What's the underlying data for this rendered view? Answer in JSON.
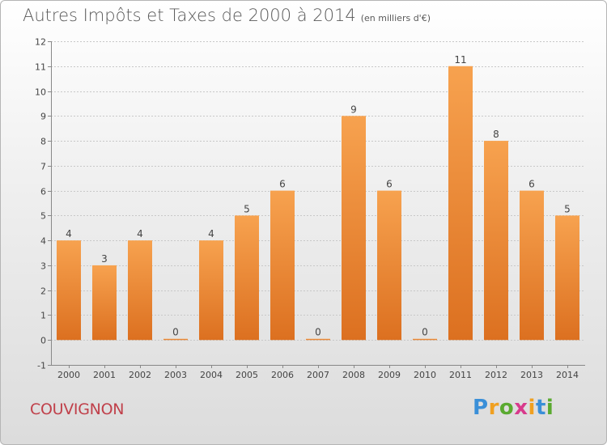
{
  "title": {
    "main": "Autres Impôts et Taxes de 2000 à 2014",
    "unit": "(en milliers d'€)"
  },
  "commune": "COUVIGNON",
  "brand": {
    "letters": [
      "P",
      "r",
      "o",
      "x",
      "i",
      "t",
      "i"
    ],
    "colors": [
      "#3a8fd8",
      "#f0a020",
      "#5aaa30",
      "#d83a8c",
      "#f0a020",
      "#3a8fd8",
      "#5aaa30"
    ]
  },
  "colors": {
    "bar_top": "#f7a24f",
    "bar_bottom": "#dc7020",
    "axis": "#888888",
    "grid": "#c8c8c8",
    "label": "#444444"
  },
  "chart_data": {
    "type": "bar",
    "title": "Autres Impôts et Taxes de 2000 à 2014",
    "unit": "(en milliers d'€)",
    "categories": [
      "2000",
      "2001",
      "2002",
      "2003",
      "2004",
      "2005",
      "2006",
      "2007",
      "2008",
      "2009",
      "2010",
      "2011",
      "2012",
      "2013",
      "2014"
    ],
    "values": [
      4,
      3,
      4,
      0,
      4,
      5,
      6,
      0,
      9,
      6,
      0,
      11,
      8,
      6,
      5
    ],
    "value_labels": [
      "4",
      "3",
      "4",
      "0",
      "4",
      "5",
      "6",
      "0",
      "9",
      "6",
      "0",
      "11",
      "8",
      "6",
      "5"
    ],
    "ylim": [
      -1,
      12
    ],
    "yticks": [
      "-1",
      "0",
      "1",
      "2",
      "3",
      "4",
      "5",
      "6",
      "7",
      "8",
      "9",
      "10",
      "11",
      "12"
    ],
    "grid": true
  }
}
